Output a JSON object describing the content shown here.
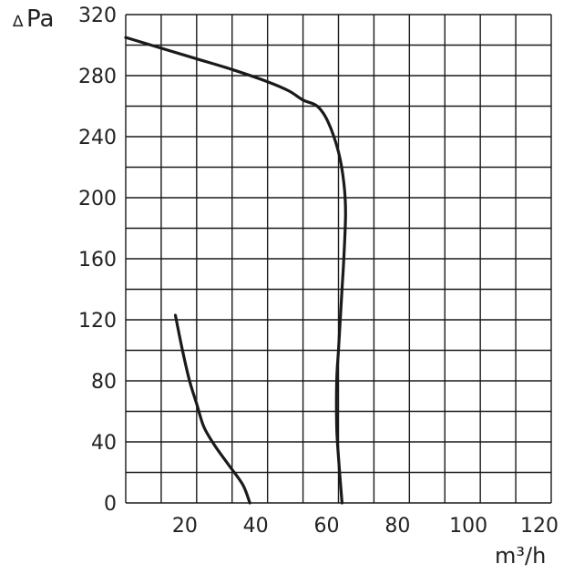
{
  "chart_data": {
    "type": "line",
    "xlabel": "m³/h",
    "ylabel": "Pa",
    "ylabel_prefix": "∆",
    "xlim": [
      0,
      120
    ],
    "ylim": [
      0,
      320
    ],
    "x_ticks": [
      0,
      20,
      40,
      60,
      80,
      100,
      120
    ],
    "y_ticks": [
      0,
      40,
      80,
      120,
      160,
      200,
      240,
      280,
      320
    ],
    "x_tick_labels": [
      "0",
      "20",
      "40",
      "60",
      "80",
      "100",
      "120"
    ],
    "y_tick_labels": [
      "0",
      "40",
      "80",
      "120",
      "160",
      "200",
      "240",
      "280",
      "320"
    ],
    "grid": true,
    "grid_step_x": 10,
    "grid_step_y": 20,
    "line_color": "#1a1a1a",
    "grid_color": "#1a1a1a",
    "series": [
      {
        "x": [
          0,
          10,
          20,
          30,
          40,
          46,
          50,
          54,
          57,
          60,
          61.5,
          62,
          61.5,
          61,
          60.5,
          60,
          59.5,
          59.5,
          60,
          61
        ],
        "y": [
          305,
          298,
          291,
          284,
          276,
          270,
          264,
          260,
          250,
          230,
          210,
          190,
          160,
          140,
          120,
          100,
          80,
          50,
          30,
          0
        ]
      },
      {
        "x": [
          14,
          16,
          18,
          20,
          22,
          25,
          29,
          33,
          35
        ],
        "y": [
          123,
          100,
          80,
          65,
          50,
          38,
          25,
          12,
          0
        ]
      }
    ]
  }
}
